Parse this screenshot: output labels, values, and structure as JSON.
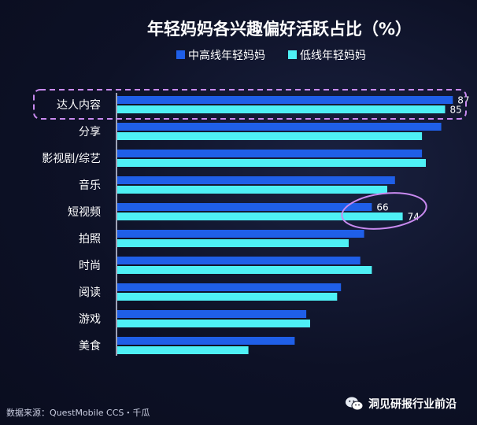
{
  "chart_data": {
    "type": "bar",
    "title": "年轻妈妈各兴趣偏好活跃占比（%）",
    "categories": [
      "达人内容",
      "分享",
      "影视剧/综艺",
      "音乐",
      "短视频",
      "拍照",
      "时尚",
      "阅读",
      "游戏",
      "美食"
    ],
    "series": [
      {
        "name": "中高线年轻妈妈",
        "color": "#1f5fe8",
        "values": [
          87,
          84,
          79,
          72,
          66,
          64,
          63,
          58,
          49,
          46
        ]
      },
      {
        "name": "低线年轻妈妈",
        "color": "#4ef0f5",
        "values": [
          85,
          79,
          80,
          70,
          74,
          60,
          66,
          57,
          50,
          34
        ]
      }
    ],
    "data_labels": [
      {
        "category": "达人内容",
        "series": 0,
        "text": "87"
      },
      {
        "category": "达人内容",
        "series": 1,
        "text": "85"
      },
      {
        "category": "短视频",
        "series": 0,
        "text": "66"
      },
      {
        "category": "短视频",
        "series": 1,
        "text": "74"
      }
    ],
    "xlim": [
      0,
      90
    ],
    "legend_position": "top"
  },
  "colors": {
    "background": "#0c1024",
    "highlight_dashed": "#c98af0",
    "highlight_circle": "#c98af0"
  },
  "footer": {
    "source": "数据来源：QuestMobile CCS・千瓜",
    "brand": "洞见研报行业前沿"
  }
}
